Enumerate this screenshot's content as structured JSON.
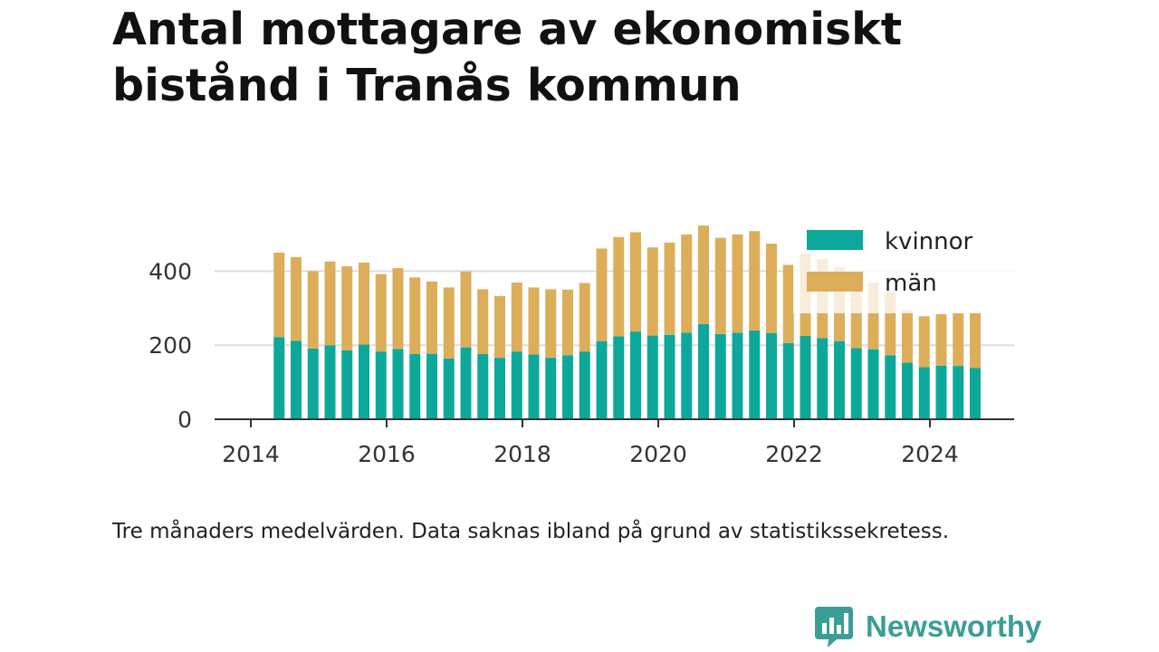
{
  "title": "Antal mottagare av ekonomiskt bistånd i Tranås kommun",
  "note": "Tre månaders medelvärden. Data saknas ibland på grund av statistikssekretess.",
  "brand": {
    "name": "Newsworthy",
    "icon": "newsworthy-logo-icon"
  },
  "colors": {
    "kvinnor": "#0ea89a",
    "man": "#dcae5a",
    "grid": "#dddddd",
    "axis": "#333333"
  },
  "chart_data": {
    "type": "bar",
    "stacked": true,
    "x": [
      "2014-06",
      "2014-09",
      "2014-12",
      "2015-03",
      "2015-06",
      "2015-09",
      "2015-12",
      "2016-03",
      "2016-06",
      "2016-09",
      "2016-12",
      "2017-03",
      "2017-06",
      "2017-09",
      "2017-12",
      "2018-03",
      "2018-06",
      "2018-09",
      "2018-12",
      "2019-03",
      "2019-06",
      "2019-09",
      "2019-12",
      "2020-03",
      "2020-06",
      "2020-09",
      "2020-12",
      "2021-03",
      "2021-06",
      "2021-09",
      "2021-12",
      "2022-03",
      "2022-06",
      "2022-09",
      "2022-12",
      "2023-03",
      "2023-06",
      "2023-09",
      "2023-12",
      "2024-03",
      "2024-06",
      "2024-09"
    ],
    "series": [
      {
        "name": "kvinnor",
        "values": [
          222,
          212,
          191,
          200,
          186,
          202,
          183,
          190,
          176,
          177,
          164,
          194,
          176,
          166,
          183,
          175,
          166,
          173,
          183,
          211,
          224,
          237,
          226,
          228,
          234,
          257,
          230,
          234,
          240,
          233,
          206,
          225,
          219,
          211,
          192,
          189,
          173,
          153,
          141,
          145,
          144,
          139
        ]
      },
      {
        "name": "män",
        "values": [
          228,
          226,
          209,
          226,
          227,
          221,
          209,
          218,
          207,
          195,
          192,
          205,
          175,
          167,
          186,
          181,
          185,
          177,
          185,
          250,
          268,
          268,
          238,
          249,
          265,
          266,
          260,
          265,
          268,
          241,
          211,
          222,
          213,
          199,
          186,
          180,
          172,
          141,
          137,
          139,
          143,
          148
        ]
      }
    ],
    "xticks": [
      "2014",
      "2016",
      "2018",
      "2020",
      "2022",
      "2024"
    ],
    "yticks": [
      "0",
      "200",
      "400"
    ],
    "ylim": [
      0,
      540
    ],
    "legend": [
      "kvinnor",
      "män"
    ],
    "legend_position": "top-right",
    "grid": "horizontal"
  }
}
